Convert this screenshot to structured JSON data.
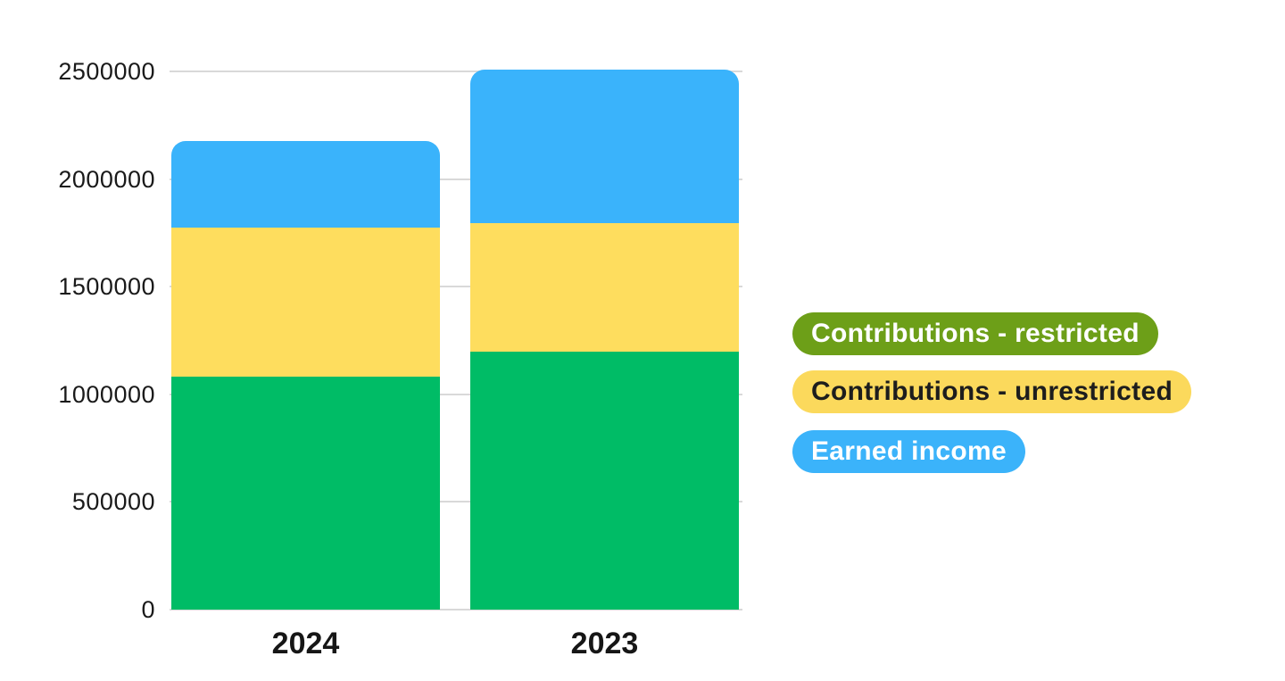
{
  "chart_data": {
    "type": "bar",
    "subtype": "stacked",
    "title": "",
    "xlabel": "",
    "ylabel": "",
    "categories": [
      "2024",
      "2023"
    ],
    "series": [
      {
        "name": "Contributions - restricted",
        "bar_color": "#00bc66",
        "values": [
          1080000,
          1200000
        ]
      },
      {
        "name": "Contributions - unrestricted",
        "bar_color": "#fedd5e",
        "values": [
          695000,
          595000
        ]
      },
      {
        "name": "Earned income",
        "bar_color": "#3ab3fb",
        "values": [
          400000,
          715000
        ]
      }
    ],
    "stack_order_bottom_to_top": [
      "Contributions - restricted",
      "Contributions - unrestricted",
      "Earned income"
    ],
    "ylim": [
      0,
      2500000
    ],
    "y_ticks": [
      {
        "value": 0,
        "label": "0"
      },
      {
        "value": 500000,
        "label": "500000"
      },
      {
        "value": 1000000,
        "label": "1000000"
      },
      {
        "value": 1500000,
        "label": "1500000"
      },
      {
        "value": 2000000,
        "label": "2000000"
      },
      {
        "value": 2500000,
        "label": "2500000"
      }
    ],
    "grid": true,
    "legend_position": "right"
  },
  "legend": {
    "items": [
      {
        "label": "Contributions - restricted",
        "pill_color": "#6d9f18",
        "text_color": "#ffffff"
      },
      {
        "label": "Contributions - unrestricted",
        "pill_color": "#fbd95c",
        "text_color": "#1d1d1d"
      },
      {
        "label": "Earned income",
        "pill_color": "#3bb3fa",
        "text_color": "#ffffff"
      }
    ]
  },
  "colors": {
    "grid": "#d9d9d9",
    "axis_text": "#1a1a1a",
    "category_text": "#161616",
    "background": "#ffffff"
  }
}
